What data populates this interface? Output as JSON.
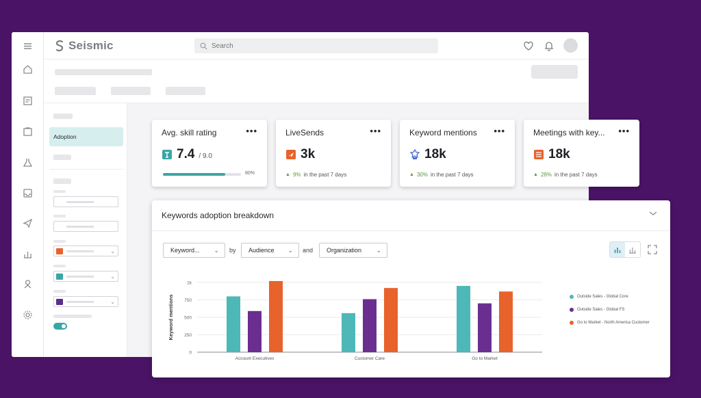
{
  "app": {
    "logo_text": "Seismic",
    "search_placeholder": "Search"
  },
  "rail": {
    "icons": [
      "menu-icon",
      "home-icon",
      "content-icon",
      "folder-icon",
      "flask-icon",
      "inbox-icon",
      "send-icon",
      "analytics-icon",
      "training-icon",
      "settings-icon"
    ]
  },
  "subnav": {
    "active_item": "Adoption",
    "filter_colors": [
      "#e8622c",
      "#3aa6a5",
      "#5b2d8e"
    ]
  },
  "kpis": [
    {
      "title": "Avg. skill rating",
      "icon": "skill-badge-icon",
      "icon_color": "#3aa6a5",
      "value": "7.4",
      "sub": "/ 9.0",
      "progress_percent": 80,
      "progress_label": "80%"
    },
    {
      "title": "LiveSends",
      "icon": "livesend-icon",
      "icon_color": "#e8622c",
      "value": "3k",
      "change": "9%",
      "period": "in the past 7 days"
    },
    {
      "title": "Keyword mentions",
      "icon": "keyword-icon",
      "icon_color": "#4a6bd6",
      "value": "18k",
      "change": "30%",
      "period": "in the past 7 days"
    },
    {
      "title": "Meetings with key...",
      "icon": "meetings-icon",
      "icon_color": "#e8622c",
      "value": "18k",
      "change": "28%",
      "period": "in the past 7 days"
    }
  ],
  "panel": {
    "title": "Keywords adoption breakdown",
    "selectors": [
      {
        "label": "Keyword..."
      },
      {
        "label": "Audience"
      },
      {
        "label": "Organization"
      }
    ],
    "connectors": [
      "by",
      "and"
    ]
  },
  "chart_data": {
    "type": "bar",
    "ylabel": "Keyword mentions",
    "xlabel": "",
    "ylim": [
      0,
      1000
    ],
    "yticks": [
      0,
      250,
      500,
      750,
      1000
    ],
    "ytick_labels": [
      "0",
      "250",
      "500",
      "750",
      "1k"
    ],
    "categories": [
      "Account Executives",
      "Customer Care",
      "Go to Market"
    ],
    "series": [
      {
        "name": "Outside Sales - Global Core",
        "color": "#4db8b7",
        "values": [
          800,
          560,
          950
        ]
      },
      {
        "name": "Outside Sales - Global FS",
        "color": "#6a2e91",
        "values": [
          590,
          760,
          700
        ]
      },
      {
        "name": "Go to Market - North America Customer",
        "color": "#e8622c",
        "values": [
          1020,
          920,
          870
        ]
      }
    ],
    "grid": true,
    "legend": "right"
  }
}
